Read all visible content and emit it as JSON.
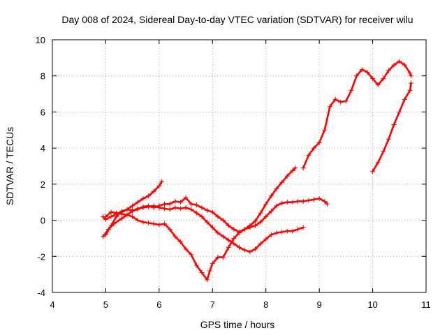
{
  "chart_data": {
    "type": "scatter",
    "title": "Day 008 of 2024, Sidereal Day-to-day VTEC variation (SDTVAR) for receiver wilu",
    "xlabel": "GPS time / hours",
    "ylabel": "SDTVAR / TECUs",
    "xlim": [
      4,
      11
    ],
    "ylim": [
      -4,
      10
    ],
    "xticks": [
      "4",
      "5",
      "6",
      "7",
      "8",
      "9",
      "10",
      "11"
    ],
    "yticks": [
      "-4",
      "-2",
      "0",
      "2",
      "4",
      "6",
      "8",
      "10"
    ],
    "grid": true,
    "marker": "+",
    "color": "#ff0000",
    "series": [
      {
        "x": [
          4.95,
          5.0,
          5.1,
          5.2,
          5.3,
          5.4,
          5.5,
          5.6,
          5.7,
          5.8,
          5.9,
          6.0,
          6.05
        ],
        "y": [
          0.2,
          0.05,
          0.2,
          0.35,
          0.45,
          0.6,
          0.8,
          1.0,
          1.2,
          1.35,
          1.6,
          1.9,
          2.15
        ]
      },
      {
        "x": [
          4.95,
          5.05,
          5.15,
          5.3,
          5.4,
          5.5,
          5.6,
          5.7,
          5.8,
          5.9,
          6.0,
          6.1,
          6.2,
          6.3,
          6.4,
          6.5,
          6.6,
          6.7,
          6.8,
          6.9,
          7.0,
          7.1,
          7.2,
          7.3,
          7.4,
          7.5,
          7.6,
          7.7,
          7.8,
          7.9,
          8.0,
          8.1,
          8.2,
          8.3,
          8.4,
          8.5,
          8.6,
          8.7
        ],
        "y": [
          -0.9,
          -0.5,
          -0.2,
          0.1,
          0.3,
          0.5,
          0.65,
          0.7,
          0.75,
          0.8,
          0.7,
          0.65,
          0.6,
          0.7,
          0.65,
          0.7,
          0.6,
          0.4,
          0.2,
          -0.1,
          -0.4,
          -0.7,
          -0.9,
          -1.1,
          -1.3,
          -1.5,
          -1.65,
          -1.75,
          -1.6,
          -1.3,
          -1.05,
          -0.8,
          -0.7,
          -0.65,
          -0.6,
          -0.6,
          -0.5,
          -0.4
        ]
      },
      {
        "x": [
          5.0,
          5.1,
          5.2,
          5.3,
          5.4,
          5.5,
          5.6,
          5.7,
          5.8,
          5.9,
          6.0,
          6.1,
          6.2,
          6.3,
          6.4,
          6.5,
          6.6,
          6.7,
          6.8,
          6.9,
          7.0,
          7.1,
          7.2,
          7.3,
          7.4,
          7.5,
          7.6,
          7.7,
          7.8,
          7.9,
          8.0,
          8.1,
          8.2,
          8.3,
          8.4,
          8.5,
          8.55
        ],
        "y": [
          -0.8,
          -0.3,
          0.2,
          0.5,
          0.6,
          0.55,
          0.6,
          0.75,
          0.8,
          0.7,
          0.8,
          0.9,
          0.9,
          1.05,
          1.0,
          1.25,
          0.9,
          0.85,
          0.7,
          0.55,
          0.45,
          0.2,
          0.0,
          -0.3,
          -0.5,
          -0.65,
          -0.5,
          -0.3,
          -0.05,
          0.4,
          0.9,
          1.35,
          1.75,
          2.1,
          2.45,
          2.75,
          2.9
        ]
      },
      {
        "x": [
          5.0,
          5.1,
          5.2,
          5.3,
          5.4,
          5.5,
          5.6,
          5.7,
          5.8,
          5.9,
          6.0,
          6.1,
          6.2,
          6.3,
          6.4,
          6.5,
          6.6,
          6.7,
          6.8,
          6.9,
          6.95,
          7.0,
          7.1,
          7.2,
          7.3,
          7.4,
          7.5,
          7.6,
          7.7,
          7.8,
          7.9,
          8.0,
          8.1,
          8.2,
          8.3,
          8.4,
          8.5,
          8.6,
          8.7,
          8.8,
          8.9,
          9.0,
          9.1,
          9.15
        ],
        "y": [
          0.2,
          0.45,
          0.4,
          0.35,
          0.3,
          0.2,
          0.0,
          -0.1,
          -0.15,
          -0.2,
          -0.25,
          -0.2,
          -0.5,
          -0.9,
          -1.2,
          -1.6,
          -1.9,
          -2.5,
          -2.9,
          -3.3,
          -2.8,
          -2.4,
          -2.05,
          -2.05,
          -1.5,
          -1.0,
          -0.7,
          -0.5,
          -0.4,
          -0.3,
          -0.1,
          0.2,
          0.5,
          0.8,
          0.95,
          1.0,
          1.0,
          1.05,
          1.05,
          1.1,
          1.15,
          1.2,
          1.05,
          0.9
        ]
      },
      {
        "x": [
          8.7,
          8.8,
          8.9,
          9.0,
          9.1,
          9.2,
          9.3,
          9.4,
          9.5,
          9.6,
          9.7,
          9.8,
          9.9,
          10.0,
          10.1,
          10.2,
          10.3,
          10.4,
          10.5,
          10.6,
          10.7,
          10.72
        ],
        "y": [
          2.9,
          3.6,
          4.0,
          4.3,
          5.0,
          6.3,
          6.7,
          6.55,
          6.6,
          7.2,
          8.0,
          8.35,
          8.2,
          7.85,
          7.5,
          7.85,
          8.3,
          8.6,
          8.8,
          8.6,
          8.15,
          8.0
        ]
      },
      {
        "x": [
          10.0,
          10.1,
          10.2,
          10.3,
          10.4,
          10.5,
          10.6,
          10.7,
          10.72
        ],
        "y": [
          2.7,
          3.2,
          3.8,
          4.5,
          5.3,
          6.0,
          6.7,
          7.2,
          7.6
        ]
      }
    ]
  }
}
